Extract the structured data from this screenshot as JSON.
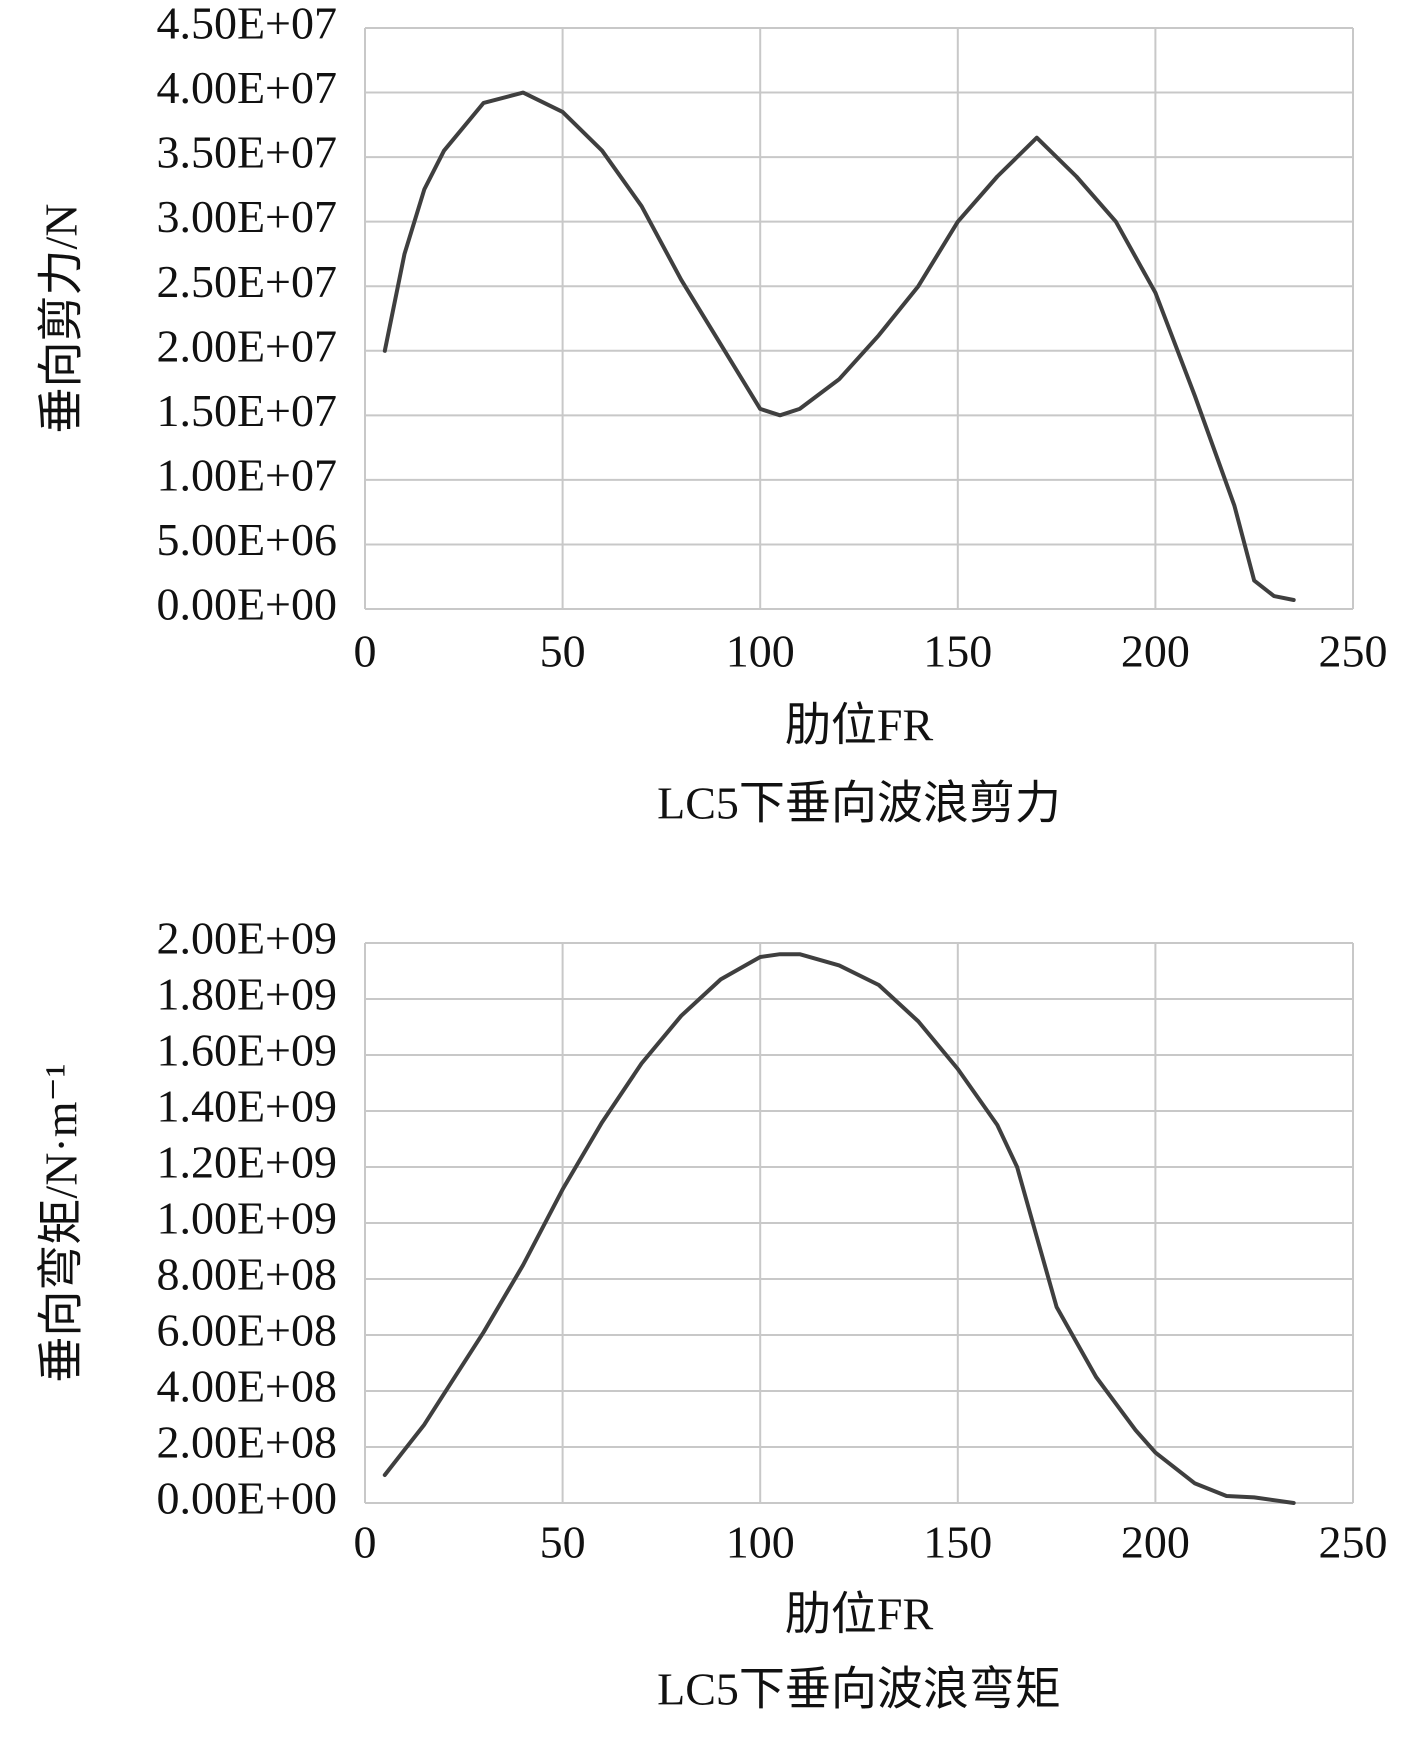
{
  "chart_data": [
    {
      "type": "line",
      "title": "LC5下垂向波浪剪力",
      "xlabel": "肋位FR",
      "ylabel": "垂向剪力/N",
      "xlim": [
        0,
        250
      ],
      "xticks": [
        0,
        50,
        100,
        150,
        200,
        250
      ],
      "ylim": [
        0,
        45000000
      ],
      "yticks": [
        {
          "value": 0,
          "label": "0.00E+00"
        },
        {
          "value": 5000000,
          "label": "5.00E+06"
        },
        {
          "value": 10000000,
          "label": "1.00E+07"
        },
        {
          "value": 15000000,
          "label": "1.50E+07"
        },
        {
          "value": 20000000,
          "label": "2.00E+07"
        },
        {
          "value": 25000000,
          "label": "2.50E+07"
        },
        {
          "value": 30000000,
          "label": "3.00E+07"
        },
        {
          "value": 35000000,
          "label": "3.50E+07"
        },
        {
          "value": 40000000,
          "label": "4.00E+07"
        },
        {
          "value": 45000000,
          "label": "4.50E+07"
        }
      ],
      "grid": true,
      "color": "#3f3f3f",
      "x": [
        5,
        10,
        15,
        20,
        30,
        40,
        50,
        60,
        70,
        80,
        90,
        100,
        105,
        110,
        120,
        130,
        140,
        150,
        160,
        170,
        180,
        190,
        200,
        210,
        220,
        225,
        230,
        235
      ],
      "values": [
        20000000,
        27500000,
        32500000,
        35500000,
        39200000,
        40000000,
        38500000,
        35500000,
        31200000,
        25500000,
        20500000,
        15500000,
        15000000,
        15500000,
        17800000,
        21200000,
        25000000,
        30000000,
        33500000,
        36500000,
        33500000,
        30000000,
        24500000,
        16500000,
        8000000,
        2200000,
        1000000,
        700000
      ]
    },
    {
      "type": "line",
      "title": "LC5下垂向波浪弯矩",
      "xlabel": "肋位FR",
      "ylabel": "垂向弯矩/N·m⁻¹",
      "xlim": [
        0,
        250
      ],
      "xticks": [
        0,
        50,
        100,
        150,
        200,
        250
      ],
      "ylim": [
        0,
        2000000000
      ],
      "yticks": [
        {
          "value": 0,
          "label": "0.00E+00"
        },
        {
          "value": 200000000,
          "label": "2.00E+08"
        },
        {
          "value": 400000000,
          "label": "4.00E+08"
        },
        {
          "value": 600000000,
          "label": "6.00E+08"
        },
        {
          "value": 800000000,
          "label": "8.00E+08"
        },
        {
          "value": 1000000000,
          "label": "1.00E+09"
        },
        {
          "value": 1200000000,
          "label": "1.20E+09"
        },
        {
          "value": 1400000000,
          "label": "1.40E+09"
        },
        {
          "value": 1600000000,
          "label": "1.60E+09"
        },
        {
          "value": 1800000000,
          "label": "1.80E+09"
        },
        {
          "value": 2000000000,
          "label": "2.00E+09"
        }
      ],
      "grid": true,
      "color": "#3f3f3f",
      "x": [
        5,
        10,
        15,
        20,
        30,
        40,
        50,
        60,
        70,
        80,
        90,
        100,
        105,
        110,
        120,
        130,
        140,
        150,
        160,
        165,
        170,
        175,
        185,
        195,
        200,
        210,
        218,
        225,
        235
      ],
      "values": [
        100000000,
        190000000,
        280000000,
        390000000,
        610000000,
        850000000,
        1120000000,
        1360000000,
        1570000000,
        1740000000,
        1870000000,
        1950000000,
        1960000000,
        1960000000,
        1920000000,
        1850000000,
        1720000000,
        1550000000,
        1350000000,
        1200000000,
        950000000,
        700000000,
        450000000,
        260000000,
        180000000,
        70000000,
        25000000,
        20000000,
        0
      ]
    }
  ]
}
